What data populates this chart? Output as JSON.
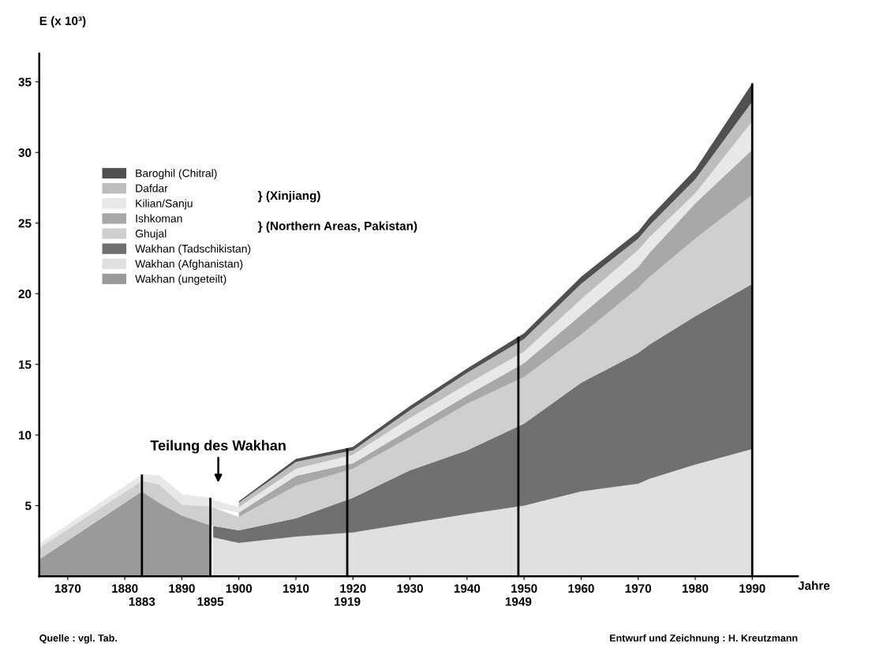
{
  "chart_data": {
    "type": "area",
    "stacked": true,
    "xlabel": "Jahre",
    "ylabel": "E (x 10³)",
    "xlim": [
      1865,
      1998
    ],
    "ylim": [
      0,
      37
    ],
    "xticks": [
      1870,
      1880,
      1890,
      1900,
      1910,
      1920,
      1930,
      1940,
      1950,
      1960,
      1970,
      1980,
      1990
    ],
    "yticks": [
      5,
      10,
      15,
      20,
      25,
      30,
      35
    ],
    "grid": false,
    "legend": "top left",
    "x": [
      1865,
      1883,
      1886,
      1890,
      1895,
      1895.5,
      1900,
      1910,
      1920,
      1930,
      1940,
      1950,
      1960,
      1970,
      1972,
      1980,
      1990
    ],
    "series": [
      {
        "name": "Wakhan (ungeteilt)",
        "color": "#9a9a9a",
        "values": [
          1.2,
          6.0,
          5.2,
          4.3,
          3.6,
          null,
          null,
          null,
          null,
          null,
          null,
          null,
          null,
          null,
          null,
          null,
          null
        ]
      },
      {
        "name": "Wakhan (Afghanistan)",
        "color": "#e0e0e0",
        "values": [
          null,
          null,
          null,
          null,
          null,
          2.75,
          2.35,
          2.8,
          3.1,
          3.75,
          4.4,
          5.0,
          6.0,
          6.55,
          6.9,
          7.9,
          9.0
        ]
      },
      {
        "name": "Wakhan (Tadschikistan)",
        "color": "#707070",
        "values": [
          null,
          null,
          null,
          null,
          null,
          0.8,
          0.9,
          1.3,
          2.45,
          3.75,
          4.5,
          5.8,
          7.7,
          9.25,
          9.5,
          10.5,
          11.7
        ]
      },
      {
        "name": "Ghujal",
        "color": "#cfcfcf",
        "values": [
          0.8,
          0.75,
          1.3,
          0.75,
          1.35,
          1.3,
          0.95,
          2.3,
          2.05,
          2.35,
          3.3,
          3.3,
          3.4,
          4.6,
          4.8,
          5.5,
          6.3
        ]
      },
      {
        "name": "Ishkoman",
        "color": "#a8a8a8",
        "values": [
          null,
          null,
          null,
          null,
          null,
          null,
          0.3,
          0.7,
          0.4,
          0.55,
          0.6,
          1.0,
          1.4,
          1.5,
          1.7,
          2.5,
          3.2
        ]
      },
      {
        "name": "Kilian/Sanju",
        "color": "#e8e8e8",
        "values": [
          0.3,
          0.45,
          0.65,
          0.75,
          0.6,
          0.55,
          0.4,
          0.5,
          0.6,
          0.8,
          0.8,
          0.8,
          1.1,
          1.2,
          1.1,
          0.7,
          2.0
        ]
      },
      {
        "name": "Dafdar",
        "color": "#bdbdbd",
        "values": [
          null,
          null,
          null,
          null,
          null,
          null,
          0.3,
          0.5,
          0.3,
          0.55,
          0.8,
          0.9,
          1.1,
          0.8,
          0.85,
          1.0,
          1.4
        ]
      },
      {
        "name": "Baroghil (Chitral)",
        "color": "#505050",
        "values": [
          null,
          null,
          null,
          null,
          null,
          null,
          0.1,
          0.2,
          0.25,
          0.3,
          0.3,
          0.4,
          0.5,
          0.5,
          0.55,
          0.7,
          1.3
        ]
      }
    ],
    "ref_lines": [
      {
        "axis": "x",
        "value": 1883,
        "label": "1883",
        "color": "#000000"
      },
      {
        "axis": "x",
        "value": 1895,
        "label": "1895",
        "color": "#000000"
      },
      {
        "axis": "x",
        "value": 1919,
        "label": "1919",
        "color": "#000000"
      },
      {
        "axis": "x",
        "value": 1949,
        "label": "1949",
        "color": "#000000"
      },
      {
        "axis": "x",
        "value": 1990,
        "label": null,
        "color": "#000000"
      }
    ],
    "annotations": [
      "Teilung des Wakhan",
      "} (Xinjiang)",
      "} (Northern Areas, Pakistan)",
      "Quelle : vgl. Tab.",
      "Entwurf und Zeichnung : H. Kreutzmann"
    ]
  }
}
